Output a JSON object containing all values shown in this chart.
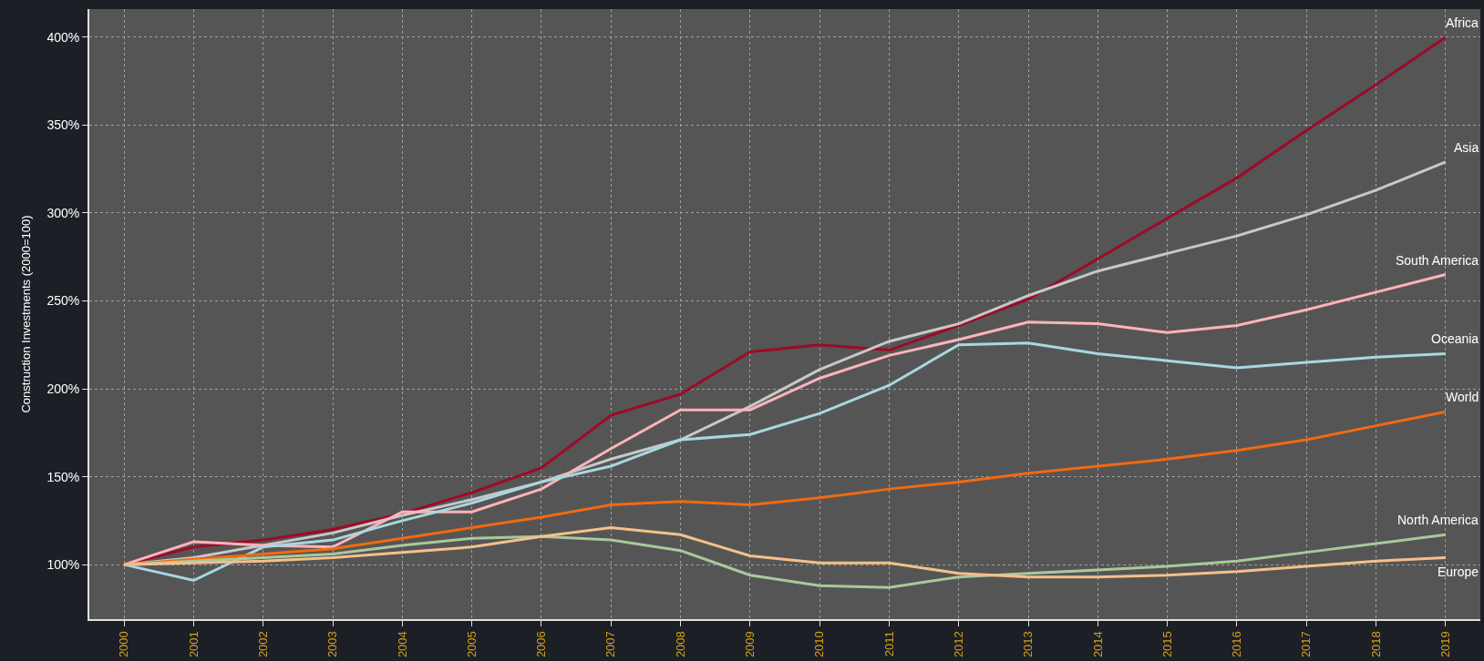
{
  "chart_data": {
    "type": "line",
    "ylabel": "Construction Investments (2000=100)",
    "categories": [
      "2000",
      "2001",
      "2002",
      "2003",
      "2004",
      "2005",
      "2006",
      "2007",
      "2008",
      "2009",
      "2010",
      "2011",
      "2012",
      "2013",
      "2014",
      "2015",
      "2016",
      "2017",
      "2018",
      "2019"
    ],
    "series": [
      {
        "name": "Africa",
        "color": "#9e0a28",
        "values": [
          100,
          110,
          114,
          120,
          129,
          141,
          155,
          185,
          197,
          221,
          225,
          222,
          236,
          251,
          274,
          297,
          320,
          347,
          373,
          400
        ]
      },
      {
        "name": "Asia",
        "color": "#c8c8c8",
        "values": [
          100,
          104,
          111,
          118,
          128,
          137,
          147,
          160,
          171,
          190,
          211,
          227,
          237,
          253,
          267,
          277,
          287,
          299,
          313,
          329
        ]
      },
      {
        "name": "South America",
        "color": "#ffb3ba",
        "values": [
          100,
          113,
          111,
          110,
          130,
          130,
          143,
          166,
          188,
          188,
          206,
          219,
          228,
          238,
          237,
          232,
          236,
          245,
          255,
          265
        ]
      },
      {
        "name": "Oceania",
        "color": "#a8d8e0",
        "values": [
          100,
          91,
          110,
          114,
          125,
          135,
          147,
          156,
          171,
          174,
          186,
          202,
          225,
          226,
          220,
          216,
          212,
          215,
          218,
          220
        ]
      },
      {
        "name": "World",
        "color": "#f26a10",
        "values": [
          100,
          103,
          106,
          109,
          115,
          121,
          127,
          134,
          136,
          134,
          138,
          143,
          147,
          152,
          156,
          160,
          165,
          171,
          179,
          187
        ]
      },
      {
        "name": "North America",
        "color": "#a9c99a",
        "values": [
          100,
          102,
          104,
          106,
          111,
          115,
          116,
          114,
          108,
          94,
          88,
          87,
          93,
          95,
          97,
          99,
          102,
          107,
          112,
          117
        ]
      },
      {
        "name": "Europe",
        "color": "#f5c08a",
        "values": [
          100,
          101,
          102,
          104,
          107,
          110,
          116,
          121,
          117,
          105,
          101,
          101,
          95,
          93,
          93,
          94,
          96,
          99,
          102,
          104
        ]
      }
    ],
    "ylim": [
      69,
      416
    ],
    "yticks": [
      {
        "value": 100,
        "label": "100%"
      },
      {
        "value": 150,
        "label": "150%"
      },
      {
        "value": 200,
        "label": "200%"
      },
      {
        "value": 250,
        "label": "250%"
      },
      {
        "value": 300,
        "label": "300%"
      },
      {
        "value": 350,
        "label": "350%"
      },
      {
        "value": 400,
        "label": "400%"
      }
    ],
    "grid": true,
    "legend": false,
    "marker": "none",
    "line_style": "solid"
  }
}
